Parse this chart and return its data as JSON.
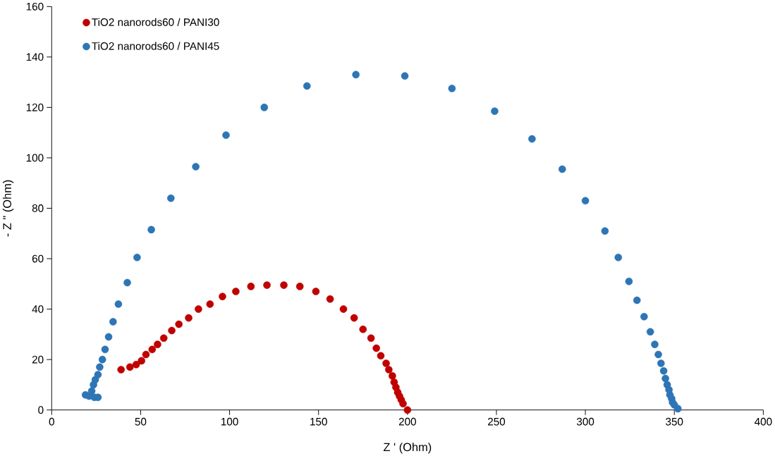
{
  "chart_data": {
    "type": "scatter",
    "xlabel": "Z ' (Ohm)",
    "ylabel": "- Z \" (Ohm)",
    "xlim": [
      0,
      400
    ],
    "ylim": [
      0,
      160
    ],
    "xticks": [
      0,
      50,
      100,
      150,
      200,
      250,
      300,
      350,
      400
    ],
    "yticks": [
      0,
      20,
      40,
      60,
      80,
      100,
      120,
      140,
      160
    ],
    "grid": false,
    "legend": "top left",
    "marker": "circle",
    "series": [
      {
        "name": "TiO2 nanorods60 / PANI30",
        "color": "#c00000",
        "x": [
          39,
          44,
          47.5,
          50.5,
          53,
          56.5,
          59.5,
          63,
          67.5,
          71.5,
          77,
          82.5,
          89,
          96,
          103.5,
          112,
          121,
          130.5,
          139.5,
          148.5,
          156.5,
          164,
          170,
          175,
          179.5,
          182.5,
          185,
          188,
          189.5,
          191.5,
          192.5,
          193.5,
          194.5,
          195.5,
          196.5,
          197.5,
          200
        ],
        "values": [
          16,
          17,
          18,
          19.5,
          22,
          24,
          26,
          28.5,
          31.5,
          34,
          36.5,
          40,
          42,
          45,
          47,
          49,
          49.5,
          49.5,
          49,
          47,
          44,
          40,
          36.5,
          32,
          28.5,
          24.5,
          21.5,
          18.5,
          16,
          13.5,
          11,
          9,
          7,
          5.5,
          4,
          2.5,
          0
        ]
      },
      {
        "name": "TiO2 nanorods60 / PANI45",
        "color": "#2e75b6",
        "x": [
          19,
          21,
          24,
          26,
          22.5,
          23.5,
          24.5,
          26,
          27,
          28.5,
          30,
          32,
          34.5,
          37.5,
          42.5,
          48,
          56,
          67,
          81,
          98,
          119.5,
          143.5,
          171,
          198.5,
          225,
          249,
          270,
          287,
          300,
          311,
          318.5,
          324.5,
          329,
          333,
          336.5,
          339,
          341,
          342.5,
          344,
          345,
          346,
          347,
          347.5,
          348.5,
          349,
          350,
          352
        ],
        "values": [
          6,
          5.5,
          5,
          5,
          7.5,
          10,
          12,
          14,
          17,
          20,
          24,
          29,
          35,
          42,
          50.5,
          60.5,
          71.5,
          84,
          96.5,
          109,
          120,
          128.5,
          133,
          132.5,
          127.5,
          118.5,
          107.5,
          95.5,
          83,
          71,
          60.5,
          51,
          43.5,
          37,
          31,
          26,
          22,
          18.5,
          15.5,
          12.5,
          10,
          8,
          6,
          4.5,
          3,
          2,
          0.5
        ]
      }
    ]
  }
}
